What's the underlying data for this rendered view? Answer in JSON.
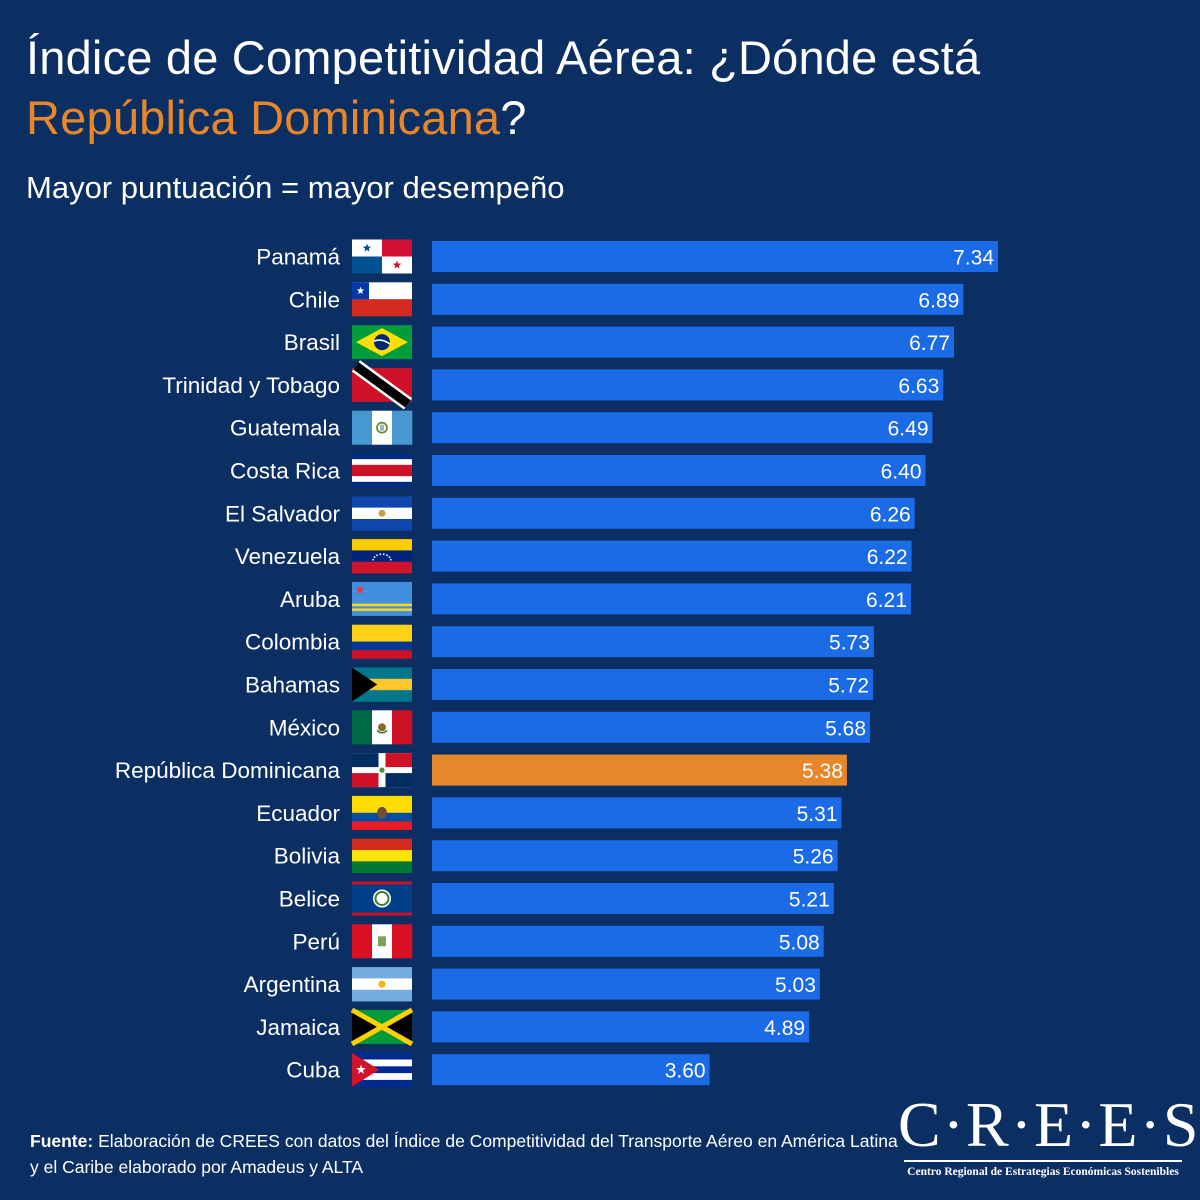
{
  "title_part1": "Índice de Competitividad Aérea: ¿Dónde está",
  "title_highlight": "República Dominicana",
  "title_end": "?",
  "subtitle": "Mayor puntuación = mayor desempeño",
  "colors": {
    "background": "#0b2f63",
    "bar": "#1b6ae6",
    "highlight": "#e8862a",
    "text": "#ffffff"
  },
  "chart_data": {
    "type": "bar",
    "orientation": "horizontal",
    "title": "Índice de Competitividad Aérea: ¿Dónde está República Dominicana?",
    "subtitle": "Mayor puntuación = mayor desempeño",
    "highlight": "República Dominicana",
    "xlim": [
      0,
      7.34
    ],
    "categories": [
      "Panamá",
      "Chile",
      "Brasil",
      "Trinidad y Tobago",
      "Guatemala",
      "Costa Rica",
      "El Salvador",
      "Venezuela",
      "Aruba",
      "Colombia",
      "Bahamas",
      "México",
      "República Dominicana",
      "Ecuador",
      "Bolivia",
      "Belice",
      "Perú",
      "Argentina",
      "Jamaica",
      "Cuba"
    ],
    "values": [
      7.34,
      6.89,
      6.77,
      6.63,
      6.49,
      6.4,
      6.26,
      6.22,
      6.21,
      5.73,
      5.72,
      5.68,
      5.38,
      5.31,
      5.26,
      5.21,
      5.08,
      5.03,
      4.89,
      3.6
    ],
    "labels": [
      "7.34",
      "6.89",
      "6.77",
      "6.63",
      "6.49",
      "6.40",
      "6.26",
      "6.22",
      "6.21",
      "5.73",
      "5.72",
      "5.68",
      "5.38",
      "5.31",
      "5.26",
      "5.21",
      "5.08",
      "5.03",
      "4.89",
      "3.60"
    ],
    "flag_icons": [
      "flag-panama-icon",
      "flag-chile-icon",
      "flag-brasil-icon",
      "flag-trinidad-y-tobago-icon",
      "flag-guatemala-icon",
      "flag-costa-rica-icon",
      "flag-el-salvador-icon",
      "flag-venezuela-icon",
      "flag-aruba-icon",
      "flag-colombia-icon",
      "flag-bahamas-icon",
      "flag-mexico-icon",
      "flag-republica-dominicana-icon",
      "flag-ecuador-icon",
      "flag-bolivia-icon",
      "flag-belice-icon",
      "flag-peru-icon",
      "flag-argentina-icon",
      "flag-jamaica-icon",
      "flag-cuba-icon"
    ]
  },
  "footer": {
    "label": "Fuente:",
    "text": " Elaboración de CREES con datos del  Índice de Competitividad del Transporte Aéreo en América Latina y el Caribe elaborado por Amadeus y ALTA"
  },
  "logo": {
    "name": "C·R·E·E·S",
    "subtitle": "Centro Regional de Estrategias Económicas Sostenibles"
  }
}
